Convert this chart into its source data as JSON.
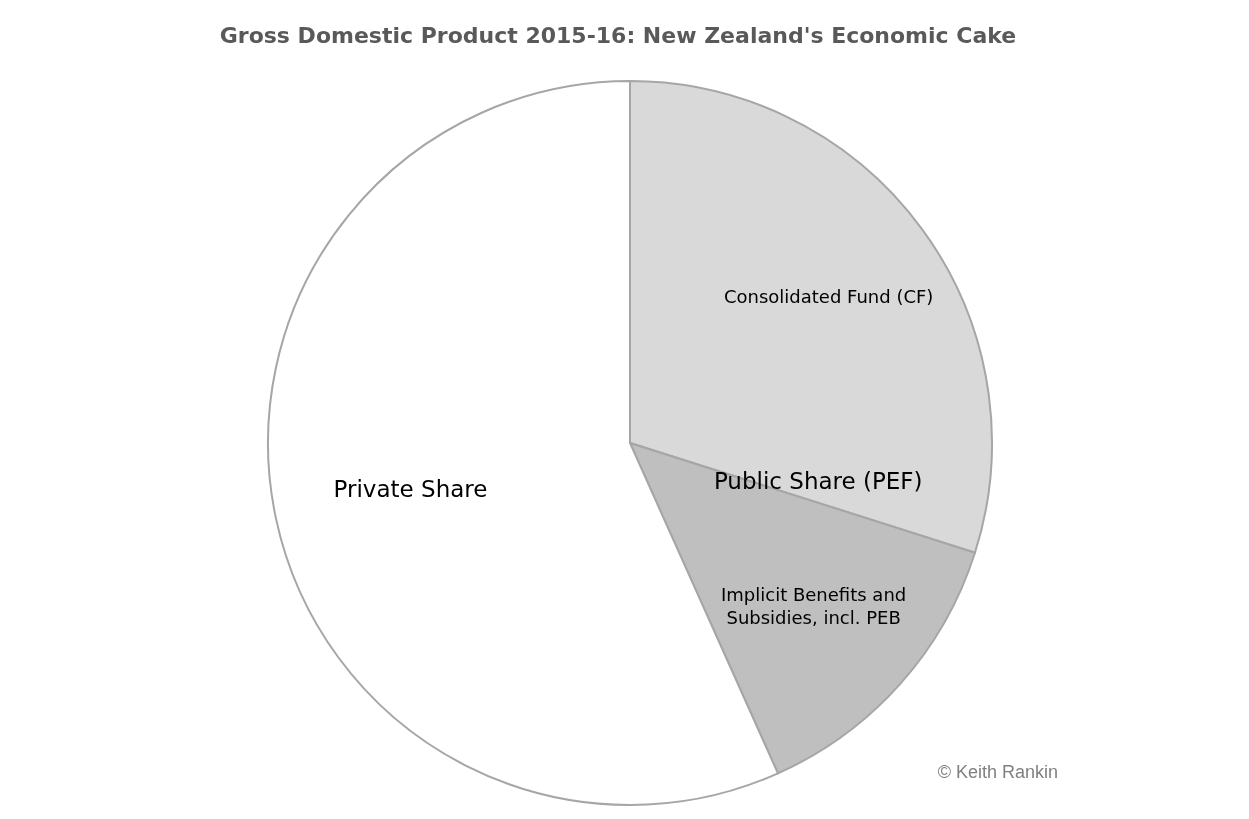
{
  "chart_data": {
    "type": "pie",
    "title": "Gross Domestic Product 2015-16: New Zealand's Economic Cake",
    "categories": [
      "Consolidated Fund (CF)",
      "Implicit Benefits and Subsidies, incl. PEB",
      "Private Share"
    ],
    "values": [
      29.9,
      13.4,
      56.7
    ],
    "colors": [
      "#d9d9d9",
      "#bfbfbf",
      "#ffffff"
    ],
    "annotations": [
      "Public Share (PEF)",
      "© Keith Rankin"
    ]
  }
}
